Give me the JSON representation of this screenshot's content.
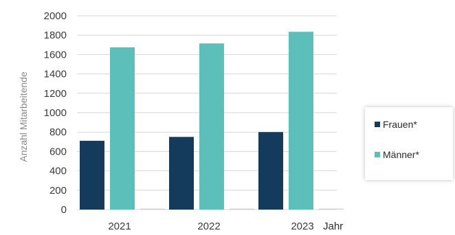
{
  "chart_data": {
    "type": "bar",
    "categories": [
      "2021",
      "2022",
      "2023"
    ],
    "series": [
      {
        "name": "Frauen*",
        "values": [
          710,
          750,
          800
        ],
        "color": "#143a5c"
      },
      {
        "name": "Männer*",
        "values": [
          1675,
          1715,
          1835
        ],
        "color": "#5cbfba"
      },
      {
        "name": "",
        "values": [
          10,
          10,
          10
        ],
        "color": "#d0d0d0"
      }
    ],
    "xlabel": "Jahr",
    "ylabel": "Anzahl Mitarbeitende",
    "ylim": [
      0,
      2000
    ],
    "yticks": [
      0,
      200,
      400,
      600,
      800,
      1000,
      1200,
      1400,
      1600,
      1800,
      2000
    ],
    "grid": true,
    "legend_position": "right"
  }
}
